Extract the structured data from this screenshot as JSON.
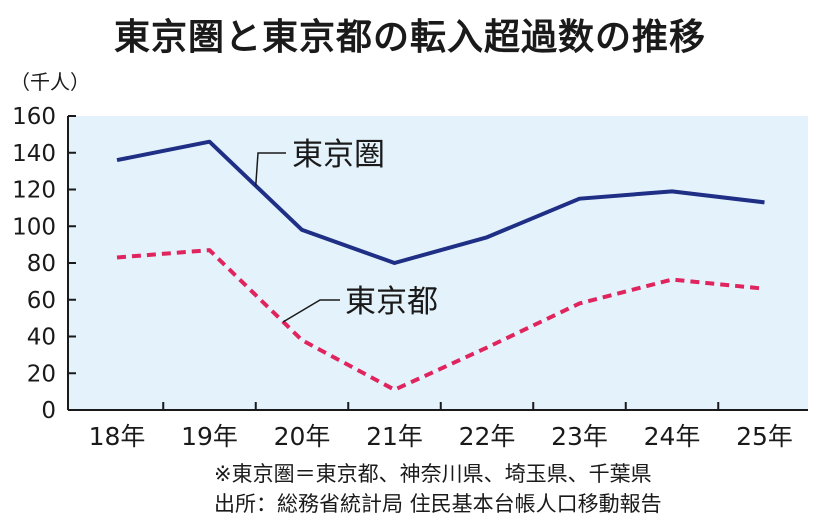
{
  "title": "東京圏と東京都の転入超過数の推移",
  "unit_label": "（千人）",
  "footnote": "※東京圏＝東京都、神奈川県、埼玉県、千葉県",
  "source": "出所：総務省統計局 住民基本台帳人口移動報告",
  "colors": {
    "plot_background": "#e4f3fb",
    "tokyo_area_line": "#1f2f86",
    "tokyo_metro_line": "#e0245e",
    "axis": "#1a1a1a"
  },
  "chart_data": {
    "type": "line",
    "title": "東京圏と東京都の転入超過数の推移",
    "ylabel": "（千人）",
    "xlabel": "",
    "categories": [
      "18年",
      "19年",
      "20年",
      "21年",
      "22年",
      "23年",
      "24年",
      "25年"
    ],
    "ylim": [
      0,
      160
    ],
    "yticks": [
      0,
      20,
      40,
      60,
      80,
      100,
      120,
      140,
      160
    ],
    "grid": false,
    "series": [
      {
        "name": "東京圏",
        "style": "solid",
        "values": [
          136,
          146,
          98,
          80,
          94,
          115,
          119,
          113
        ]
      },
      {
        "name": "東京都",
        "style": "dashed",
        "values": [
          83,
          87,
          38,
          11,
          34,
          58,
          71,
          66
        ]
      }
    ]
  }
}
